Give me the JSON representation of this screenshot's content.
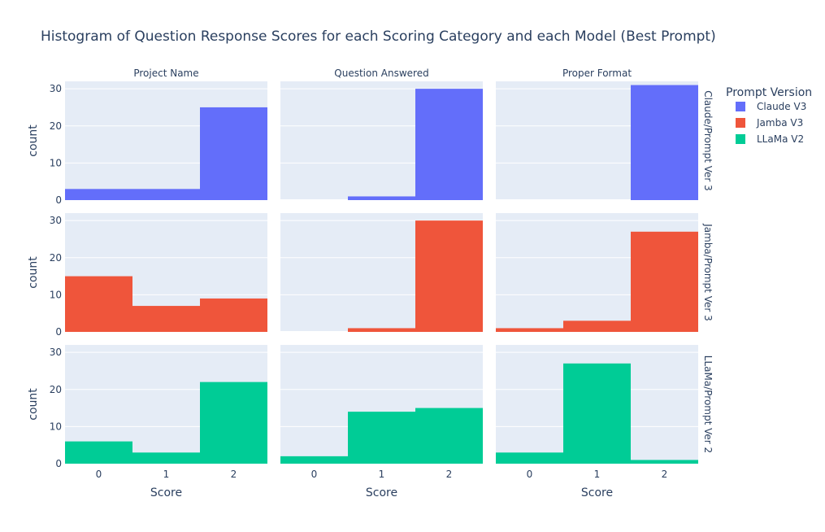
{
  "chart_data": {
    "type": "bar",
    "title": "Histogram of Question Response Scores for each Scoring Category and each Model (Best Prompt)",
    "categories": [
      "0",
      "1",
      "2"
    ],
    "xlabel": "Score",
    "ylabel": "count",
    "ylim": [
      0,
      32
    ],
    "yticks": [
      0,
      10,
      20,
      30
    ],
    "grid": true,
    "legend": {
      "title": "Prompt Version",
      "placement": "top-right",
      "entries": [
        {
          "name": "Claude V3",
          "color": "#636efa"
        },
        {
          "name": "Jamba V3",
          "color": "#ef553b"
        },
        {
          "name": "LLaMa V2",
          "color": "#00cc96"
        }
      ]
    },
    "columns": [
      "Project Name",
      "Question Answered",
      "Proper Format"
    ],
    "rows": [
      {
        "label": "Claude/Prompt Ver 3",
        "series": "Claude V3",
        "color": "#636efa",
        "panels": [
          {
            "column": "Project Name",
            "values": [
              3,
              3,
              25
            ]
          },
          {
            "column": "Question Answered",
            "values": [
              0,
              1,
              30
            ]
          },
          {
            "column": "Proper Format",
            "values": [
              0,
              0,
              31
            ]
          }
        ]
      },
      {
        "label": "Jamba/Prompt Ver 3",
        "series": "Jamba V3",
        "color": "#ef553b",
        "panels": [
          {
            "column": "Project Name",
            "values": [
              15,
              7,
              9
            ]
          },
          {
            "column": "Question Answered",
            "values": [
              0,
              1,
              30
            ]
          },
          {
            "column": "Proper Format",
            "values": [
              1,
              3,
              27
            ]
          }
        ]
      },
      {
        "label": "LLaMa/Prompt Ver 2",
        "series": "LLaMa V2",
        "color": "#00cc96",
        "panels": [
          {
            "column": "Project Name",
            "values": [
              6,
              3,
              22
            ]
          },
          {
            "column": "Question Answered",
            "values": [
              2,
              14,
              15
            ]
          },
          {
            "column": "Proper Format",
            "values": [
              3,
              27,
              1
            ]
          }
        ]
      }
    ]
  }
}
